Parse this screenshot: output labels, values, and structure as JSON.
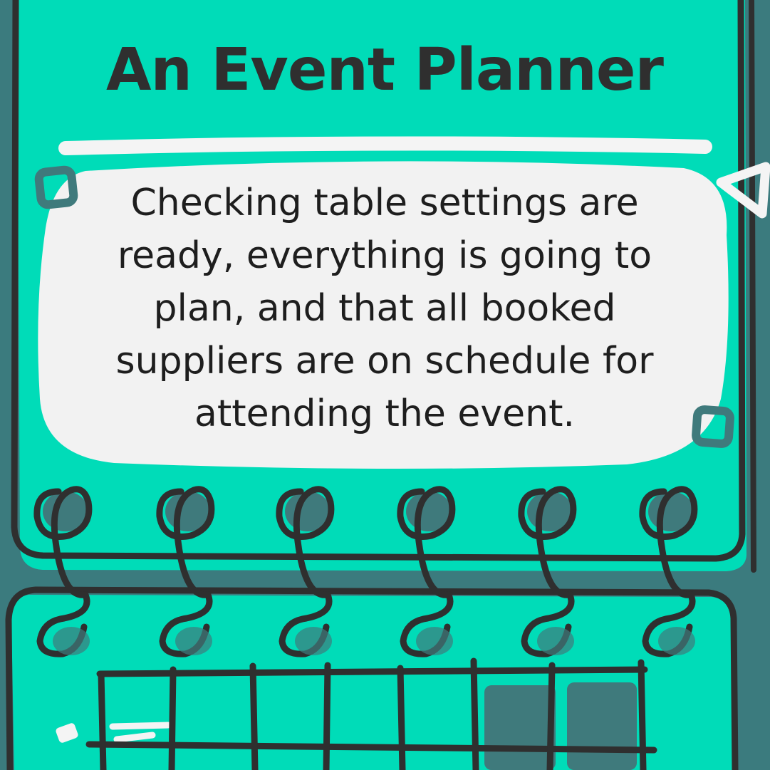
{
  "page": {
    "title": "An Event Planner",
    "body_text": "Checking table settings are ready, everything is going to plan, and that all booked suppliers are on schedule for attending the event."
  },
  "colors": {
    "background_teal": "#3b7b7e",
    "page_green": "#00dcb8",
    "bubble": "#f2f2f2",
    "ink": "#2f2f2f",
    "slate_block": "#3f7a7c",
    "accent_white": "#f4f4f4"
  },
  "decor": {
    "icons": [
      "rounded-square-icon",
      "triangle-icon",
      "sparkle-dash-icon",
      "spiral-binding-icon",
      "calendar-grid-icon"
    ]
  }
}
